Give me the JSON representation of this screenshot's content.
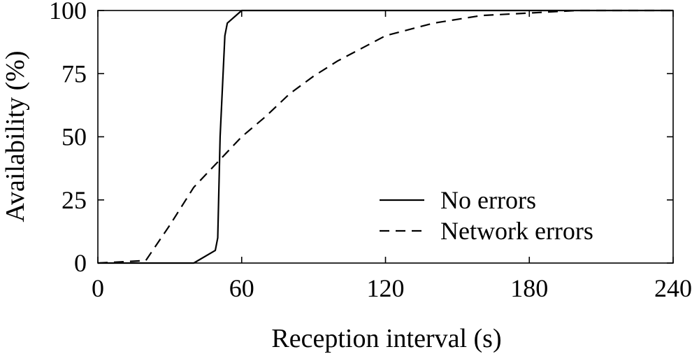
{
  "chart_data": {
    "type": "line",
    "xlabel": "Reception interval (s)",
    "ylabel": "Availability (%)",
    "xlim": [
      0,
      240
    ],
    "ylim": [
      0,
      100
    ],
    "xticks": [
      0,
      60,
      120,
      180,
      240
    ],
    "yticks": [
      0,
      25,
      50,
      75,
      100
    ],
    "grid": false,
    "legend_position": "bottom-right",
    "series": [
      {
        "name": "No errors",
        "style": "solid",
        "color": "#000000",
        "x": [
          0,
          40,
          49,
          50,
          51,
          52,
          53,
          54,
          60,
          240
        ],
        "y": [
          0,
          0,
          5,
          10,
          50,
          70,
          90,
          95,
          100,
          100
        ]
      },
      {
        "name": "Network errors",
        "style": "dashed",
        "color": "#000000",
        "x": [
          0,
          20,
          30,
          40,
          50,
          60,
          70,
          80,
          90,
          100,
          110,
          120,
          140,
          160,
          180,
          200,
          240
        ],
        "y": [
          0,
          1,
          15,
          30,
          40,
          50,
          58,
          67,
          74,
          80,
          85,
          90,
          95,
          98,
          99,
          100,
          100
        ]
      }
    ]
  }
}
